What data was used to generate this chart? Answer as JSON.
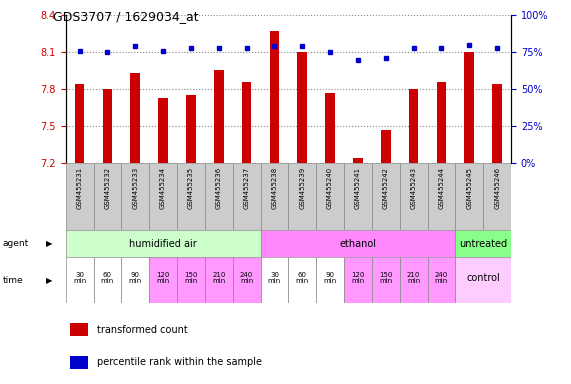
{
  "title": "GDS3707 / 1629034_at",
  "samples": [
    "GSM455231",
    "GSM455232",
    "GSM455233",
    "GSM455234",
    "GSM455235",
    "GSM455236",
    "GSM455237",
    "GSM455238",
    "GSM455239",
    "GSM455240",
    "GSM455241",
    "GSM455242",
    "GSM455243",
    "GSM455244",
    "GSM455245",
    "GSM455246"
  ],
  "bar_values": [
    7.84,
    7.8,
    7.93,
    7.73,
    7.75,
    7.96,
    7.86,
    8.27,
    8.1,
    7.77,
    7.24,
    7.47,
    7.8,
    7.86,
    8.1,
    7.84
  ],
  "dot_values": [
    76,
    75,
    79,
    76,
    78,
    78,
    78,
    79,
    79,
    75,
    70,
    71,
    78,
    78,
    80,
    78
  ],
  "bar_color": "#cc0000",
  "dot_color": "#0000cc",
  "ylim_left": [
    7.2,
    8.4
  ],
  "ylim_right": [
    0,
    100
  ],
  "yticks_left": [
    7.2,
    7.5,
    7.8,
    8.1,
    8.4
  ],
  "yticks_right": [
    0,
    25,
    50,
    75,
    100
  ],
  "agent_groups": [
    {
      "label": "humidified air",
      "start": 0,
      "end": 7,
      "color": "#ccffcc"
    },
    {
      "label": "ethanol",
      "start": 7,
      "end": 14,
      "color": "#ff88ff"
    },
    {
      "label": "untreated",
      "start": 14,
      "end": 16,
      "color": "#88ff88"
    }
  ],
  "time_labels_14": [
    "30\nmin",
    "60\nmin",
    "90\nmin",
    "120\nmin",
    "150\nmin",
    "210\nmin",
    "240\nmin",
    "30\nmin",
    "60\nmin",
    "90\nmin",
    "120\nmin",
    "150\nmin",
    "210\nmin",
    "240\nmin"
  ],
  "time_colors_14": [
    "#ffffff",
    "#ffffff",
    "#ffffff",
    "#ff99ff",
    "#ff99ff",
    "#ff99ff",
    "#ff99ff",
    "#ffffff",
    "#ffffff",
    "#ffffff",
    "#ff99ff",
    "#ff99ff",
    "#ff99ff",
    "#ff99ff"
  ],
  "control_label": "control",
  "control_color": "#ffccff",
  "legend_bar": "transformed count",
  "legend_dot": "percentile rank within the sample",
  "background_color": "#ffffff",
  "grid_color": "#888888",
  "tick_label_color_left": "#cc0000",
  "tick_label_color_right": "#0000cc",
  "sample_bg_color": "#cccccc",
  "sample_border_color": "#888888"
}
